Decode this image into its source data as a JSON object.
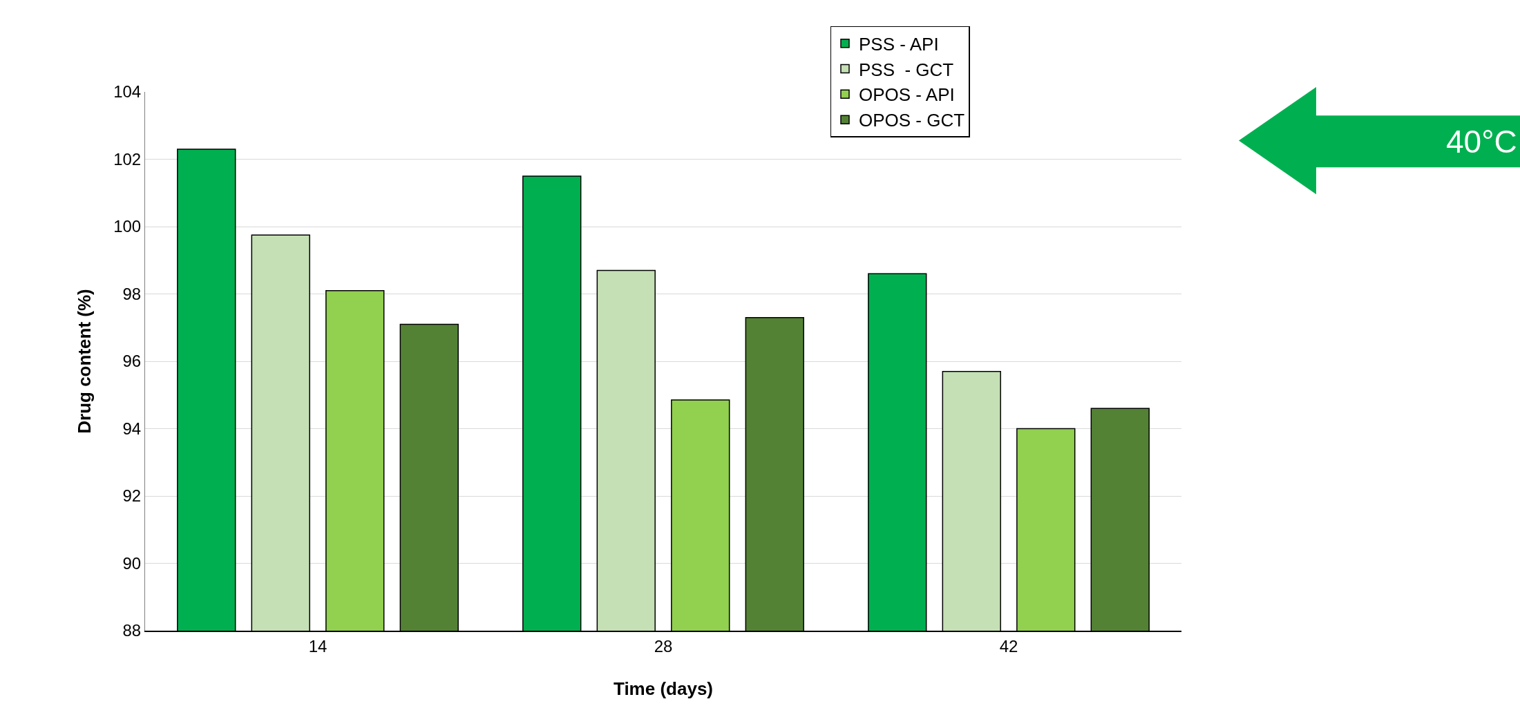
{
  "chart_data": {
    "type": "bar",
    "xlabel": "Time (days)",
    "ylabel": "Drug content (%)",
    "categories": [
      "14",
      "28",
      "42"
    ],
    "series": [
      {
        "name": "PSS - API",
        "color": "#00b050",
        "values": [
          102.3,
          101.5,
          98.6
        ]
      },
      {
        "name": "PSS  - GCT",
        "color": "#c5e0b4",
        "values": [
          99.75,
          98.7,
          95.7
        ]
      },
      {
        "name": "OPOS - API",
        "color": "#92d050",
        "values": [
          98.1,
          94.85,
          94.0
        ]
      },
      {
        "name": "OPOS - GCT",
        "color": "#548235",
        "values": [
          97.1,
          97.3,
          94.6
        ]
      }
    ],
    "ylim": [
      88,
      104
    ],
    "yticks": [
      88,
      90,
      92,
      94,
      96,
      98,
      100,
      102,
      104
    ],
    "grid": "y",
    "legend": "top right",
    "annotations": [
      "40°C"
    ]
  }
}
